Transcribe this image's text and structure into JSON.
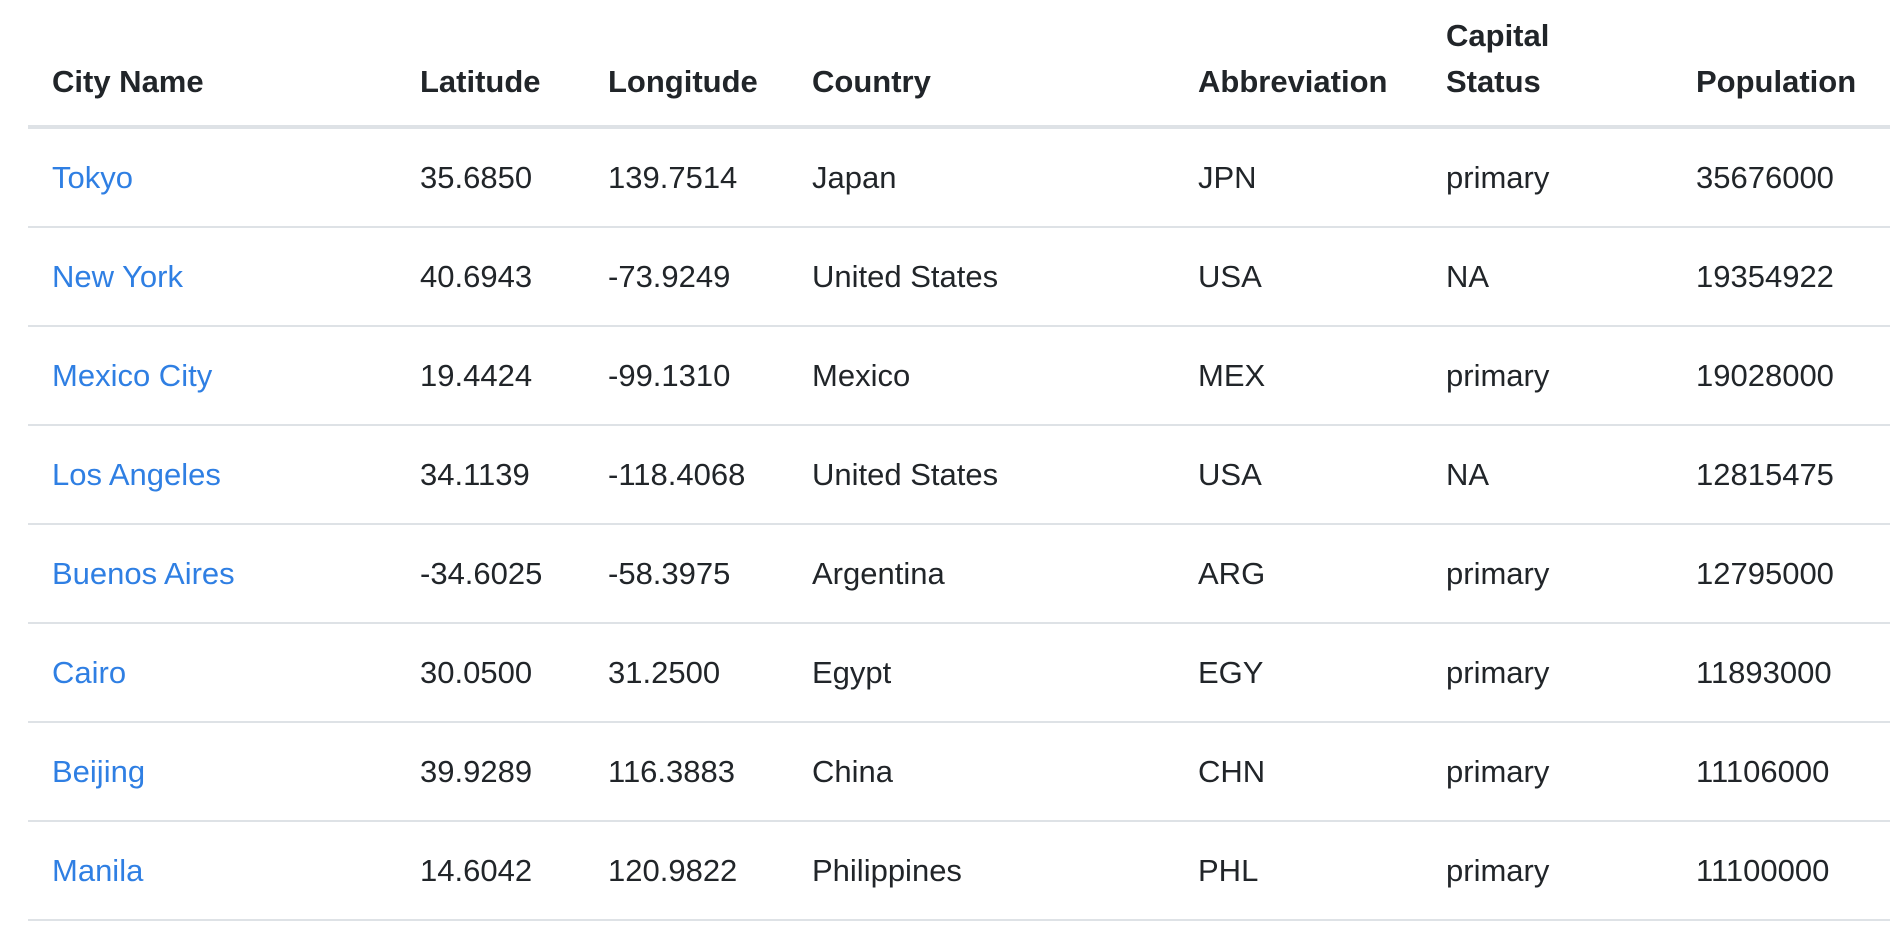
{
  "table": {
    "headers": {
      "city_name": "City Name",
      "latitude": "Latitude",
      "longitude": "Longitude",
      "country": "Country",
      "abbreviation": "Abbreviation",
      "capital_status": "Capital Status",
      "population": "Population"
    },
    "rows": [
      {
        "city": "Tokyo",
        "lat": "35.6850",
        "lng": "139.7514",
        "country": "Japan",
        "abbr": "JPN",
        "capital": "primary",
        "population": "35676000"
      },
      {
        "city": "New York",
        "lat": "40.6943",
        "lng": "-73.9249",
        "country": "United States",
        "abbr": "USA",
        "capital": "NA",
        "population": "19354922"
      },
      {
        "city": "Mexico City",
        "lat": "19.4424",
        "lng": "-99.1310",
        "country": "Mexico",
        "abbr": "MEX",
        "capital": "primary",
        "population": "19028000"
      },
      {
        "city": "Los Angeles",
        "lat": "34.1139",
        "lng": "-118.4068",
        "country": "United States",
        "abbr": "USA",
        "capital": "NA",
        "population": "12815475"
      },
      {
        "city": "Buenos Aires",
        "lat": "-34.6025",
        "lng": "-58.3975",
        "country": "Argentina",
        "abbr": "ARG",
        "capital": "primary",
        "population": "12795000"
      },
      {
        "city": "Cairo",
        "lat": "30.0500",
        "lng": "31.2500",
        "country": "Egypt",
        "abbr": "EGY",
        "capital": "primary",
        "population": "11893000"
      },
      {
        "city": "Beijing",
        "lat": "39.9289",
        "lng": "116.3883",
        "country": "China",
        "abbr": "CHN",
        "capital": "primary",
        "population": "11106000"
      },
      {
        "city": "Manila",
        "lat": "14.6042",
        "lng": "120.9822",
        "country": "Philippines",
        "abbr": "PHL",
        "capital": "primary",
        "population": "11100000"
      }
    ]
  },
  "colors": {
    "link": "#2f7fe3",
    "text": "#212529",
    "border": "#dee2e6"
  }
}
